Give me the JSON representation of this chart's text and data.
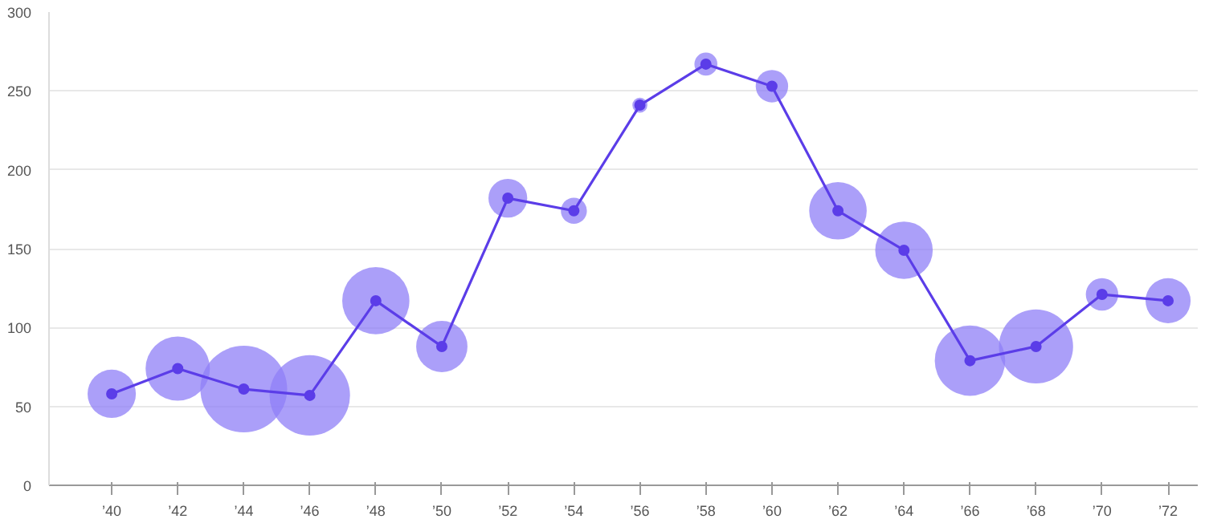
{
  "chart_data": {
    "type": "bubble",
    "categories": [
      "’40",
      "’42",
      "’44",
      "’46",
      "’48",
      "’50",
      "’52",
      "’54",
      "’56",
      "’58",
      "’60",
      "’62",
      "’64",
      "’66",
      "’68",
      "’70",
      "’72"
    ],
    "series": [
      {
        "color": "#8f7ff7",
        "values": [
          58,
          74,
          61,
          57,
          117,
          88,
          182,
          174,
          241,
          267,
          253,
          174,
          149,
          79,
          88,
          121,
          117
        ],
        "sizes": [
          0.31,
          0.55,
          1,
          0.86,
          0.6,
          0.35,
          0.2,
          0.09,
          0.03,
          0.07,
          0.14,
          0.44,
          0.44,
          0.66,
          0.73,
          0.14,
          0.27
        ]
      },
      {
        "type": "line",
        "color": "#5b3de8",
        "values": [
          58,
          74,
          61,
          57,
          117,
          88,
          182,
          174,
          241,
          267,
          253,
          174,
          149,
          79,
          88,
          121,
          117
        ],
        "marker": "circle",
        "line_style": "solid"
      }
    ],
    "ylim": [
      0,
      300
    ],
    "yticks": [
      0,
      50,
      100,
      150,
      200,
      250,
      300
    ],
    "grid": "y"
  }
}
